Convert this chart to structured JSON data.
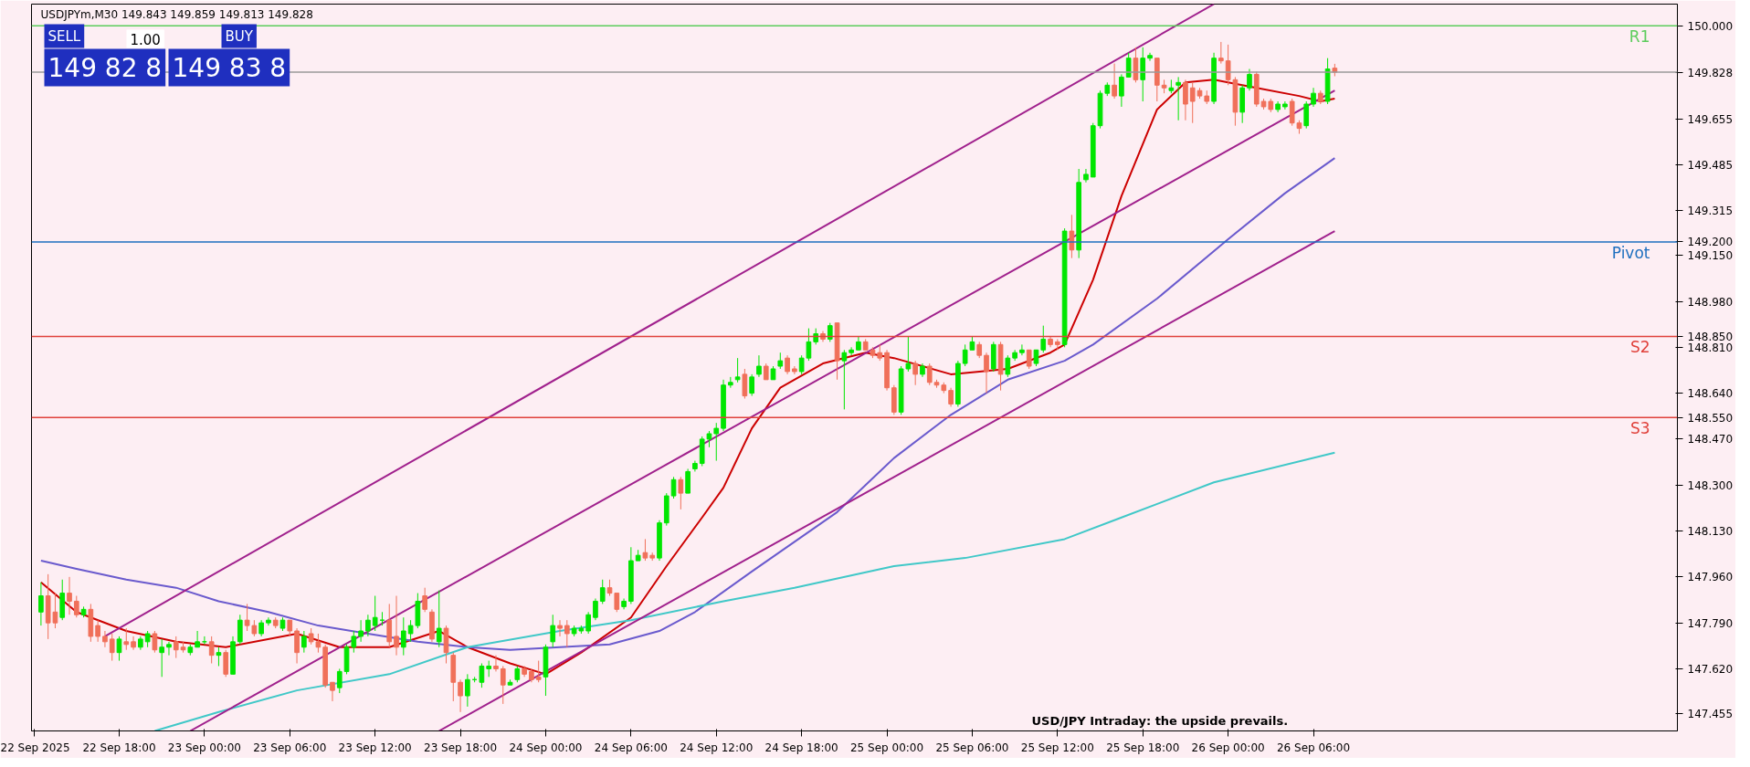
{
  "chart_data": {
    "type": "candlestick",
    "title": "USDJPYm,M30  149.843 149.859 149.813 149.828",
    "annotations": [
      "SELL",
      "1.00",
      "BUY",
      "149 82 8",
      "149 83 8",
      "USD/JPY Intraday:  the upside prevails."
    ],
    "colors": [
      "#00e600",
      "#f0705a",
      "#f0705a",
      "#00e600",
      "#f0705a",
      "#f0705a",
      "#00e600",
      "#f0705a",
      "#f0705a",
      "#f0705a",
      "#f0705a",
      "#00e600",
      "#f0705a",
      "#f0705a",
      "#00e600",
      "#00e600",
      "#f0705a",
      "#00e600",
      "#00e600",
      "#f0705a",
      "#f0705a",
      "#00e600",
      "#00e600",
      "#00e600",
      "#f0705a",
      "#00e600",
      "#f0705a",
      "#00e600",
      "#00e600",
      "#f0705a",
      "#f0705a",
      "#00e600",
      "#00e600",
      "#f0705a",
      "#00e600",
      "#f0705a",
      "#f0705a",
      "#00e600",
      "#f0705a",
      "#f0705a",
      "#f0705a",
      "#f0705a",
      "#00e600",
      "#00e600",
      "#00e600",
      "#00e600",
      "#00e600",
      "#00e600",
      "#00e600",
      "#f0705a",
      "#f0705a",
      "#00e600",
      "#00e600",
      "#00e600",
      "#f0705a",
      "#f0705a",
      "#00e600",
      "#f0705a",
      "#f0705a",
      "#f0705a",
      "#00e600",
      "#00e600",
      "#00e600",
      "#00e600",
      "#f0705a",
      "#f0705a",
      "#00e600",
      "#00e600",
      "#f0705a",
      "#f0705a",
      "#f0705a",
      "#00e600",
      "#00e600",
      "#f0705a",
      "#f0705a",
      "#00e600",
      "#00e600",
      "#00e600",
      "#00e600",
      "#00e600",
      "#f0705a",
      "#f0705a",
      "#00e600",
      "#00e600",
      "#00e600",
      "#f0705a",
      "#f0705a",
      "#00e600",
      "#00e600",
      "#00e600",
      "#f0705a",
      "#00e600",
      "#00e600",
      "#00e600",
      "#00e600",
      "#00e600",
      "#00e600",
      "#00e600",
      "#00e600",
      "#f0705a",
      "#00e600",
      "#00e600",
      "#f0705a",
      "#00e600",
      "#00e600",
      "#f0705a",
      "#f0705a",
      "#00e600",
      "#00e600",
      "#00e600",
      "#f0705a",
      "#00e600",
      "#f0705a",
      "#00e600",
      "#00e600",
      "#00e600",
      "#f0705a",
      "#f0705a",
      "#f0705a",
      "#f0705a",
      "#f0705a",
      "#00e600",
      "#00e600",
      "#f0705a",
      "#00e600",
      "#f0705a",
      "#f0705a",
      "#f0705a",
      "#f0705a",
      "#00e600",
      "#00e600",
      "#00e600",
      "#f0705a",
      "#f0705a",
      "#00e600",
      "#f0705a",
      "#00e600",
      "#00e600",
      "#00e600",
      "#f0705a",
      "#00e600",
      "#00e600",
      "#f0705a",
      "#f0705a",
      "#00e600",
      "#f0705a",
      "#00e600",
      "#00e600",
      "#00e600",
      "#00e600",
      "#00e600",
      "#f0705a",
      "#00e600",
      "#00e600",
      "#f0705a",
      "#00e600",
      "#00e600",
      "#f0705a",
      "#f0705a",
      "#00e600",
      "#00e600",
      "#f0705a",
      "#f0705a",
      "#f0705a",
      "#f0705a",
      "#00e600",
      "#f0705a",
      "#f0705a",
      "#f0705a",
      "#00e600",
      "#00e600",
      "#f0705a",
      "#f0705a",
      "#f0705a",
      "#00e600",
      "#00e600",
      "#f0705a",
      "#f0705a",
      "#00e600",
      "#00e600",
      "#f0705a",
      "#00e600",
      "#f0705a"
    ],
    "x": [
      "2025-09-22T12:30",
      "2025-09-22T13:00",
      "2025-09-22T13:30",
      "2025-09-22T14:00",
      "2025-09-22T14:30",
      "2025-09-22T15:00",
      "2025-09-22T15:30",
      "2025-09-22T16:00",
      "2025-09-22T16:30",
      "2025-09-22T17:00",
      "2025-09-22T17:30",
      "2025-09-22T18:00",
      "2025-09-22T18:30",
      "2025-09-22T19:00",
      "2025-09-22T19:30",
      "2025-09-22T20:00",
      "2025-09-22T20:30",
      "2025-09-22T21:00",
      "2025-09-22T21:30",
      "2025-09-22T22:00",
      "2025-09-22T22:30",
      "2025-09-22T23:00",
      "2025-09-22T23:30",
      "2025-09-23T00:00",
      "2025-09-23T00:30",
      "2025-09-23T01:00",
      "2025-09-23T01:30",
      "2025-09-23T02:00",
      "2025-09-23T02:30",
      "2025-09-23T03:00",
      "2025-09-23T03:30",
      "2025-09-23T04:00",
      "2025-09-23T04:30",
      "2025-09-23T05:00",
      "2025-09-23T05:30",
      "2025-09-23T06:00",
      "2025-09-23T06:30",
      "2025-09-23T07:00",
      "2025-09-23T07:30",
      "2025-09-23T08:00",
      "2025-09-23T08:30",
      "2025-09-23T09:00",
      "2025-09-23T09:30",
      "2025-09-23T10:00",
      "2025-09-23T10:30",
      "2025-09-23T11:00",
      "2025-09-23T11:30",
      "2025-09-23T12:00",
      "2025-09-23T12:30",
      "2025-09-23T13:00",
      "2025-09-23T13:30",
      "2025-09-23T14:00",
      "2025-09-23T14:30",
      "2025-09-23T15:00",
      "2025-09-23T15:30",
      "2025-09-23T16:00",
      "2025-09-23T16:30",
      "2025-09-23T17:00",
      "2025-09-23T17:30",
      "2025-09-23T18:00",
      "2025-09-23T18:30",
      "2025-09-23T19:00",
      "2025-09-23T19:30",
      "2025-09-23T20:00",
      "2025-09-23T20:30",
      "2025-09-23T21:00",
      "2025-09-23T21:30",
      "2025-09-23T22:00",
      "2025-09-23T22:30",
      "2025-09-23T23:00",
      "2025-09-23T23:30",
      "2025-09-24T00:00",
      "2025-09-24T00:30",
      "2025-09-24T01:00",
      "2025-09-24T01:30",
      "2025-09-24T02:00",
      "2025-09-24T02:30",
      "2025-09-24T03:00",
      "2025-09-24T03:30",
      "2025-09-24T04:00",
      "2025-09-24T04:30",
      "2025-09-24T05:00",
      "2025-09-24T05:30",
      "2025-09-24T06:00",
      "2025-09-24T06:30",
      "2025-09-24T07:00",
      "2025-09-24T07:30",
      "2025-09-24T08:00",
      "2025-09-24T08:30",
      "2025-09-24T09:00",
      "2025-09-24T09:30",
      "2025-09-24T10:00",
      "2025-09-24T10:30",
      "2025-09-24T11:00",
      "2025-09-24T11:30",
      "2025-09-24T12:00",
      "2025-09-24T12:30",
      "2025-09-24T13:00",
      "2025-09-24T13:30",
      "2025-09-24T14:00",
      "2025-09-24T14:30",
      "2025-09-24T15:00",
      "2025-09-24T15:30",
      "2025-09-24T16:00",
      "2025-09-24T16:30",
      "2025-09-24T17:00",
      "2025-09-24T17:30",
      "2025-09-24T18:00",
      "2025-09-24T18:30",
      "2025-09-24T19:00",
      "2025-09-24T19:30",
      "2025-09-24T20:00",
      "2025-09-24T20:30",
      "2025-09-24T21:00",
      "2025-09-24T21:30",
      "2025-09-24T22:00",
      "2025-09-24T22:30",
      "2025-09-24T23:00",
      "2025-09-24T23:30",
      "2025-09-25T00:00",
      "2025-09-25T00:30",
      "2025-09-25T01:00",
      "2025-09-25T01:30",
      "2025-09-25T02:00",
      "2025-09-25T02:30",
      "2025-09-25T03:00",
      "2025-09-25T03:30",
      "2025-09-25T04:00",
      "2025-09-25T04:30",
      "2025-09-25T05:00",
      "2025-09-25T05:30",
      "2025-09-25T06:00",
      "2025-09-25T06:30",
      "2025-09-25T07:00",
      "2025-09-25T07:30",
      "2025-09-25T08:00",
      "2025-09-25T08:30",
      "2025-09-25T09:00",
      "2025-09-25T09:30",
      "2025-09-25T10:00",
      "2025-09-25T10:30",
      "2025-09-25T11:00",
      "2025-09-25T11:30",
      "2025-09-25T12:00",
      "2025-09-25T12:30",
      "2025-09-25T13:00",
      "2025-09-25T13:30",
      "2025-09-25T14:00",
      "2025-09-25T14:30",
      "2025-09-25T15:00",
      "2025-09-25T15:30",
      "2025-09-25T16:00",
      "2025-09-25T16:30",
      "2025-09-25T17:00",
      "2025-09-25T17:30",
      "2025-09-25T18:00",
      "2025-09-25T18:30",
      "2025-09-25T19:00",
      "2025-09-25T19:30",
      "2025-09-25T20:00",
      "2025-09-25T20:30",
      "2025-09-25T21:00",
      "2025-09-25T21:30",
      "2025-09-25T22:00",
      "2025-09-25T22:30",
      "2025-09-25T23:00",
      "2025-09-25T23:30",
      "2025-09-26T00:00",
      "2025-09-26T00:30",
      "2025-09-26T01:00",
      "2025-09-26T01:30",
      "2025-09-26T02:00",
      "2025-09-26T02:30",
      "2025-09-26T03:00",
      "2025-09-26T03:30",
      "2025-09-26T04:00",
      "2025-09-26T04:30",
      "2025-09-26T05:00",
      "2025-09-26T05:30",
      "2025-09-26T06:00",
      "2025-09-26T06:30",
      "2025-09-26T07:00",
      "2025-09-26T07:30"
    ],
    "ohlc": [
      [
        147.83,
        147.94,
        147.78,
        147.89
      ],
      [
        147.89,
        147.97,
        147.73,
        147.79
      ],
      [
        147.83,
        147.9,
        147.77,
        147.79
      ],
      [
        147.81,
        147.95,
        147.8,
        147.9
      ],
      [
        147.9,
        147.96,
        147.82,
        147.87
      ],
      [
        147.87,
        147.89,
        147.81,
        147.82
      ],
      [
        147.82,
        147.85,
        147.81,
        147.84
      ],
      [
        147.84,
        147.86,
        147.72,
        147.74
      ],
      [
        147.78,
        147.8,
        147.72,
        147.74
      ],
      [
        147.74,
        147.76,
        147.7,
        147.72
      ],
      [
        147.73,
        147.75,
        147.65,
        147.68
      ],
      [
        147.68,
        147.74,
        147.65,
        147.73
      ],
      [
        147.72,
        147.77,
        147.69,
        147.71
      ],
      [
        147.72,
        147.74,
        147.69,
        147.7
      ],
      [
        147.7,
        147.74,
        147.69,
        147.73
      ],
      [
        147.72,
        147.76,
        147.7,
        147.75
      ],
      [
        147.75,
        147.76,
        147.68,
        147.69
      ],
      [
        147.68,
        147.73,
        147.59,
        147.7
      ],
      [
        147.7,
        147.72,
        147.67,
        147.71
      ],
      [
        147.72,
        147.74,
        147.66,
        147.69
      ],
      [
        147.7,
        147.72,
        147.68,
        147.69
      ],
      [
        147.68,
        147.71,
        147.67,
        147.7
      ],
      [
        147.7,
        147.76,
        147.7,
        147.72
      ],
      [
        147.72,
        147.74,
        147.71,
        147.72
      ],
      [
        147.72,
        147.74,
        147.64,
        147.67
      ],
      [
        147.67,
        147.7,
        147.63,
        147.68
      ],
      [
        147.68,
        147.69,
        147.59,
        147.6
      ],
      [
        147.6,
        147.74,
        147.6,
        147.72
      ],
      [
        147.72,
        147.82,
        147.71,
        147.8
      ],
      [
        147.8,
        147.86,
        147.76,
        147.78
      ],
      [
        147.78,
        147.8,
        147.74,
        147.75
      ],
      [
        147.75,
        147.8,
        147.74,
        147.79
      ],
      [
        147.79,
        147.81,
        147.78,
        147.8
      ],
      [
        147.8,
        147.81,
        147.77,
        147.78
      ],
      [
        147.77,
        147.81,
        147.76,
        147.8
      ],
      [
        147.8,
        147.8,
        147.74,
        147.76
      ],
      [
        147.76,
        147.77,
        147.64,
        147.68
      ],
      [
        147.7,
        147.76,
        147.68,
        147.74
      ],
      [
        147.75,
        147.77,
        147.71,
        147.72
      ],
      [
        147.72,
        147.75,
        147.68,
        147.7
      ],
      [
        147.7,
        147.71,
        147.55,
        147.56
      ],
      [
        147.57,
        147.57,
        147.5,
        147.54
      ],
      [
        147.55,
        147.62,
        147.53,
        147.61
      ],
      [
        147.61,
        147.71,
        147.6,
        147.7
      ],
      [
        147.7,
        147.76,
        147.68,
        147.74
      ],
      [
        147.74,
        147.8,
        147.72,
        147.76
      ],
      [
        147.76,
        147.82,
        147.74,
        147.8
      ],
      [
        147.78,
        147.89,
        147.76,
        147.81
      ],
      [
        147.8,
        147.83,
        147.78,
        147.8
      ],
      [
        147.8,
        147.86,
        147.7,
        147.72
      ],
      [
        147.74,
        147.89,
        147.67,
        147.7
      ],
      [
        147.7,
        147.81,
        147.67,
        147.76
      ],
      [
        147.75,
        147.8,
        147.72,
        147.78
      ],
      [
        147.78,
        147.9,
        147.77,
        147.87
      ],
      [
        147.89,
        147.92,
        147.83,
        147.84
      ],
      [
        147.83,
        147.84,
        147.72,
        147.73
      ],
      [
        147.72,
        147.91,
        147.7,
        147.77
      ],
      [
        147.77,
        147.78,
        147.64,
        147.68
      ],
      [
        147.67,
        147.68,
        147.5,
        147.57
      ],
      [
        147.57,
        147.58,
        147.46,
        147.52
      ],
      [
        147.52,
        147.6,
        147.48,
        147.58
      ],
      [
        147.58,
        147.59,
        147.57,
        147.58
      ],
      [
        147.57,
        147.64,
        147.55,
        147.63
      ],
      [
        147.62,
        147.65,
        147.59,
        147.63
      ],
      [
        147.63,
        147.67,
        147.61,
        147.62
      ],
      [
        147.62,
        147.63,
        147.49,
        147.56
      ],
      [
        147.56,
        147.58,
        147.56,
        147.57
      ],
      [
        147.58,
        147.63,
        147.57,
        147.62
      ],
      [
        147.62,
        147.63,
        147.59,
        147.6
      ],
      [
        147.61,
        147.62,
        147.57,
        147.58
      ],
      [
        147.59,
        147.65,
        147.57,
        147.58
      ],
      [
        147.59,
        147.71,
        147.52,
        147.7
      ],
      [
        147.72,
        147.82,
        147.7,
        147.78
      ],
      [
        147.78,
        147.8,
        147.74,
        147.77
      ],
      [
        147.78,
        147.8,
        147.7,
        147.75
      ],
      [
        147.75,
        147.78,
        147.74,
        147.77
      ],
      [
        147.76,
        147.78,
        147.75,
        147.77
      ],
      [
        147.76,
        147.83,
        147.75,
        147.82
      ],
      [
        147.81,
        147.88,
        147.8,
        147.87
      ],
      [
        147.87,
        147.95,
        147.86,
        147.92
      ],
      [
        147.92,
        147.95,
        147.89,
        147.9
      ],
      [
        147.9,
        147.9,
        147.83,
        147.84
      ],
      [
        147.85,
        147.88,
        147.84,
        147.87
      ],
      [
        147.87,
        148.07,
        147.86,
        148.02
      ],
      [
        148.02,
        148.06,
        148.02,
        148.04
      ],
      [
        148.05,
        148.1,
        148.02,
        148.03
      ],
      [
        148.04,
        148.05,
        148.02,
        148.03
      ],
      [
        148.03,
        148.17,
        148.02,
        148.16
      ],
      [
        148.16,
        148.27,
        148.15,
        148.26
      ],
      [
        148.26,
        148.33,
        148.25,
        148.32
      ],
      [
        148.32,
        148.33,
        148.21,
        148.27
      ],
      [
        148.27,
        148.36,
        148.27,
        148.35
      ],
      [
        148.36,
        148.39,
        148.35,
        148.38
      ],
      [
        148.38,
        148.48,
        148.37,
        148.47
      ],
      [
        148.47,
        148.5,
        148.44,
        148.49
      ],
      [
        148.49,
        148.53,
        148.39,
        148.51
      ],
      [
        148.51,
        148.69,
        148.5,
        148.67
      ],
      [
        148.67,
        148.7,
        148.66,
        148.68
      ],
      [
        148.69,
        148.77,
        148.68,
        148.7
      ],
      [
        148.71,
        148.73,
        148.62,
        148.63
      ],
      [
        148.64,
        148.71,
        148.63,
        148.7
      ],
      [
        148.71,
        148.78,
        148.7,
        148.74
      ],
      [
        148.74,
        148.75,
        148.69,
        148.69
      ],
      [
        148.69,
        148.74,
        148.69,
        148.73
      ],
      [
        148.74,
        148.79,
        148.73,
        148.76
      ],
      [
        148.77,
        148.78,
        148.71,
        148.72
      ],
      [
        148.73,
        148.74,
        148.71,
        148.72
      ],
      [
        148.72,
        148.78,
        148.71,
        148.77
      ],
      [
        148.77,
        148.88,
        148.76,
        148.83
      ],
      [
        148.83,
        148.88,
        148.82,
        148.86
      ],
      [
        148.86,
        148.87,
        148.83,
        148.84
      ],
      [
        148.84,
        148.9,
        148.83,
        148.89
      ],
      [
        148.9,
        148.9,
        148.69,
        148.76
      ],
      [
        148.76,
        148.8,
        148.58,
        148.79
      ],
      [
        148.79,
        148.81,
        148.78,
        148.8
      ],
      [
        148.8,
        148.85,
        148.8,
        148.83
      ],
      [
        148.83,
        148.84,
        148.8,
        148.8
      ],
      [
        148.8,
        148.81,
        148.77,
        148.78
      ],
      [
        148.79,
        148.82,
        148.76,
        148.77
      ],
      [
        148.79,
        148.8,
        148.65,
        148.66
      ],
      [
        148.66,
        148.67,
        148.56,
        148.57
      ],
      [
        148.57,
        148.74,
        148.56,
        148.73
      ],
      [
        148.73,
        148.85,
        148.72,
        148.75
      ],
      [
        148.75,
        148.76,
        148.67,
        148.71
      ],
      [
        148.71,
        148.75,
        148.7,
        148.74
      ],
      [
        148.74,
        148.75,
        148.67,
        148.68
      ],
      [
        148.68,
        148.69,
        148.66,
        148.67
      ],
      [
        148.67,
        148.68,
        148.64,
        148.65
      ],
      [
        148.65,
        148.66,
        148.59,
        148.6
      ],
      [
        148.6,
        148.76,
        148.59,
        148.75
      ],
      [
        148.75,
        148.82,
        148.74,
        148.8
      ],
      [
        148.8,
        148.85,
        148.8,
        148.83
      ],
      [
        148.82,
        148.83,
        148.77,
        148.78
      ],
      [
        148.78,
        148.79,
        148.64,
        148.72
      ],
      [
        148.73,
        148.83,
        148.72,
        148.82
      ],
      [
        148.82,
        148.83,
        148.65,
        148.71
      ],
      [
        148.71,
        148.78,
        148.7,
        148.77
      ],
      [
        148.77,
        148.8,
        148.76,
        148.79
      ],
      [
        148.79,
        148.82,
        148.78,
        148.8
      ],
      [
        148.8,
        148.8,
        148.73,
        148.74
      ],
      [
        148.75,
        148.8,
        148.74,
        148.8
      ],
      [
        148.8,
        148.89,
        148.79,
        148.84
      ],
      [
        148.84,
        148.85,
        148.81,
        148.82
      ],
      [
        148.83,
        148.84,
        148.8,
        148.82
      ],
      [
        148.82,
        149.25,
        148.81,
        149.24
      ],
      [
        149.24,
        149.3,
        149.14,
        149.17
      ],
      [
        149.17,
        149.47,
        149.14,
        149.42
      ],
      [
        149.43,
        149.47,
        149.42,
        149.45
      ],
      [
        149.44,
        149.64,
        149.44,
        149.63
      ],
      [
        149.63,
        149.76,
        149.62,
        149.75
      ],
      [
        149.75,
        149.79,
        149.74,
        149.78
      ],
      [
        149.78,
        149.86,
        149.73,
        149.74
      ],
      [
        149.74,
        149.82,
        149.7,
        149.81
      ],
      [
        149.81,
        149.9,
        149.81,
        149.88
      ],
      [
        149.88,
        149.92,
        149.79,
        149.8
      ],
      [
        149.8,
        149.92,
        149.72,
        149.88
      ],
      [
        149.88,
        149.9,
        149.87,
        149.89
      ],
      [
        149.88,
        149.88,
        149.72,
        149.78
      ],
      [
        149.78,
        149.8,
        149.75,
        149.77
      ],
      [
        149.76,
        149.8,
        149.75,
        149.77
      ],
      [
        149.78,
        149.81,
        149.65,
        149.79
      ],
      [
        149.79,
        149.8,
        149.65,
        149.71
      ],
      [
        149.77,
        149.79,
        149.64,
        149.72
      ],
      [
        149.76,
        149.77,
        149.73,
        149.74
      ],
      [
        149.74,
        149.76,
        149.71,
        149.72
      ],
      [
        149.72,
        149.9,
        149.71,
        149.88
      ],
      [
        149.88,
        149.94,
        149.86,
        149.87
      ],
      [
        149.87,
        149.93,
        149.78,
        149.8
      ],
      [
        149.8,
        149.81,
        149.63,
        149.68
      ],
      [
        149.68,
        149.78,
        149.64,
        149.77
      ],
      [
        149.77,
        149.84,
        149.76,
        149.82
      ],
      [
        149.82,
        149.83,
        149.7,
        149.71
      ],
      [
        149.72,
        149.73,
        149.69,
        149.7
      ],
      [
        149.72,
        149.73,
        149.68,
        149.69
      ],
      [
        149.69,
        149.72,
        149.68,
        149.71
      ],
      [
        149.7,
        149.72,
        149.69,
        149.71
      ],
      [
        149.72,
        149.73,
        149.63,
        149.64
      ],
      [
        149.64,
        149.65,
        149.6,
        149.62
      ],
      [
        149.63,
        149.72,
        149.62,
        149.71
      ],
      [
        149.71,
        149.77,
        149.7,
        149.75
      ],
      [
        149.75,
        149.76,
        149.71,
        149.72
      ],
      [
        149.72,
        149.88,
        149.71,
        149.84
      ],
      [
        149.843,
        149.859,
        149.813,
        149.828
      ]
    ],
    "series": [
      {
        "type": "line",
        "color": "#cc0000",
        "x": [
          "2025-09-22T12:30",
          "2025-09-22T15:00",
          "2025-09-22T18:30",
          "2025-09-22T22:00",
          "2025-09-23T01:30",
          "2025-09-23T06:30",
          "2025-09-23T09:30",
          "2025-09-23T13:00",
          "2025-09-23T16:30",
          "2025-09-23T18:30",
          "2025-09-23T21:30",
          "2025-09-24T00:00",
          "2025-09-24T02:30",
          "2025-09-24T06:00",
          "2025-09-24T08:30",
          "2025-09-24T11:00",
          "2025-09-24T12:30",
          "2025-09-24T14:30",
          "2025-09-24T16:30",
          "2025-09-24T19:30",
          "2025-09-24T22:30",
          "2025-09-25T00:30",
          "2025-09-25T04:30",
          "2025-09-25T08:30",
          "2025-09-25T11:30",
          "2025-09-25T12:30",
          "2025-09-25T14:30",
          "2025-09-25T16:30",
          "2025-09-25T19:00",
          "2025-09-25T21:00",
          "2025-09-25T23:00",
          "2025-09-26T02:00",
          "2025-09-26T05:00",
          "2025-09-26T06:30",
          "2025-09-26T07:30"
        ],
        "values": [
          147.94,
          147.83,
          147.76,
          147.72,
          147.7,
          147.75,
          147.7,
          147.7,
          147.76,
          147.7,
          147.64,
          147.6,
          147.68,
          147.81,
          148.0,
          148.18,
          148.29,
          148.51,
          148.66,
          148.75,
          148.79,
          148.77,
          148.71,
          148.73,
          148.79,
          148.82,
          149.06,
          149.37,
          149.69,
          149.79,
          149.8,
          149.77,
          149.74,
          149.72,
          149.73
        ]
      },
      {
        "type": "line",
        "color": "#6a5acd",
        "x": [
          "2025-09-22T12:30",
          "2025-09-22T15:00",
          "2025-09-22T18:30",
          "2025-09-22T22:00",
          "2025-09-23T01:00",
          "2025-09-23T04:30",
          "2025-09-23T08:00",
          "2025-09-23T11:30",
          "2025-09-23T15:00",
          "2025-09-23T18:30",
          "2025-09-23T21:30",
          "2025-09-24T01:00",
          "2025-09-24T04:30",
          "2025-09-24T08:00",
          "2025-09-24T10:30",
          "2025-09-24T14:30",
          "2025-09-24T17:30",
          "2025-09-24T20:30",
          "2025-09-25T00:30",
          "2025-09-25T04:30",
          "2025-09-25T08:30",
          "2025-09-25T12:30",
          "2025-09-25T14:30",
          "2025-09-25T19:00",
          "2025-09-26T00:00",
          "2025-09-26T04:00",
          "2025-09-26T07:30"
        ],
        "values": [
          148.02,
          147.99,
          147.95,
          147.92,
          147.87,
          147.83,
          147.78,
          147.75,
          147.72,
          147.7,
          147.69,
          147.7,
          147.71,
          147.76,
          147.83,
          147.98,
          148.09,
          148.2,
          148.4,
          148.56,
          148.69,
          148.76,
          148.82,
          148.99,
          149.21,
          149.38,
          149.51
        ]
      },
      {
        "type": "line",
        "color": "#40c8c8",
        "x": [
          "2025-09-22T20:30",
          "2025-09-23T01:00",
          "2025-09-23T06:30",
          "2025-09-23T13:00",
          "2025-09-23T18:30",
          "2025-09-24T01:00",
          "2025-09-24T06:00",
          "2025-09-24T12:30",
          "2025-09-24T17:30",
          "2025-09-25T00:30",
          "2025-09-25T05:30",
          "2025-09-25T12:30",
          "2025-09-25T16:30",
          "2025-09-25T23:00",
          "2025-09-26T07:30"
        ],
        "values": [
          147.39,
          147.46,
          147.54,
          147.6,
          147.7,
          147.76,
          147.8,
          147.87,
          147.92,
          148.0,
          148.03,
          148.1,
          148.18,
          148.31,
          148.42
        ]
      },
      {
        "type": "line",
        "color": "#a0208c",
        "x": [
          "2025-09-22T17:00",
          "2025-09-25T23:00"
        ],
        "values": [
          147.74,
          150.08
        ]
      },
      {
        "type": "line",
        "color": "#a0208c",
        "x": [
          "2025-09-22T23:00",
          "2025-09-26T07:30"
        ],
        "values": [
          147.39,
          149.76
        ]
      },
      {
        "type": "line",
        "color": "#a0208c",
        "x": [
          "2025-09-23T16:30",
          "2025-09-26T07:30"
        ],
        "values": [
          147.39,
          149.24
        ]
      }
    ],
    "ref_lines": [
      {
        "axis": "y",
        "value": 150.0,
        "label": "R1",
        "color": "#5ccc5c"
      },
      {
        "axis": "y",
        "value": 149.828,
        "label": null,
        "color": "#9a9a9a"
      },
      {
        "axis": "y",
        "value": 149.2,
        "label": "Pivot",
        "color": "#1e6fbf"
      },
      {
        "axis": "y",
        "value": 148.85,
        "label": "S2",
        "color": "#e0403a"
      },
      {
        "axis": "y",
        "value": 148.55,
        "label": "S3",
        "color": "#e0403a"
      }
    ],
    "xlim": [
      "2025-09-22T11:50",
      "2025-09-27T07:36"
    ],
    "xticks": [
      {
        "value": "2025-09-22T12:00",
        "label": "22 Sep 2025"
      },
      {
        "value": "2025-09-22T18:00",
        "label": "22 Sep 18:00"
      },
      {
        "value": "2025-09-23T00:00",
        "label": "23 Sep 00:00"
      },
      {
        "value": "2025-09-23T06:00",
        "label": "23 Sep 06:00"
      },
      {
        "value": "2025-09-23T12:00",
        "label": "23 Sep 12:00"
      },
      {
        "value": "2025-09-23T18:00",
        "label": "23 Sep 18:00"
      },
      {
        "value": "2025-09-24T00:00",
        "label": "24 Sep 00:00"
      },
      {
        "value": "2025-09-24T06:00",
        "label": "24 Sep 06:00"
      },
      {
        "value": "2025-09-24T12:00",
        "label": "24 Sep 12:00"
      },
      {
        "value": "2025-09-24T18:00",
        "label": "24 Sep 18:00"
      },
      {
        "value": "2025-09-25T00:00",
        "label": "25 Sep 00:00"
      },
      {
        "value": "2025-09-25T06:00",
        "label": "25 Sep 06:00"
      },
      {
        "value": "2025-09-25T12:00",
        "label": "25 Sep 12:00"
      },
      {
        "value": "2025-09-25T18:00",
        "label": "25 Sep 18:00"
      },
      {
        "value": "2025-09-26T00:00",
        "label": "26 Sep 00:00"
      },
      {
        "value": "2025-09-26T06:00",
        "label": "26 Sep 06:00"
      }
    ],
    "ylim": [
      147.39,
      150.08
    ],
    "yticks": [
      {
        "value": 150.0,
        "label": "150.000"
      },
      {
        "value": 149.828,
        "label": "149.828"
      },
      {
        "value": 149.2,
        "label": "149.200"
      },
      {
        "value": 148.85,
        "label": "148.850"
      },
      {
        "value": 148.55,
        "label": "148.550"
      },
      {
        "value": 149.655,
        "label": "149.655"
      },
      {
        "value": 149.485,
        "label": "149.485"
      },
      {
        "value": 149.315,
        "label": "149.315"
      },
      {
        "value": 149.15,
        "label": "149.150"
      },
      {
        "value": 148.98,
        "label": "148.980"
      },
      {
        "value": 148.81,
        "label": "148.810"
      },
      {
        "value": 148.64,
        "label": "148.640"
      },
      {
        "value": 148.47,
        "label": "148.470"
      },
      {
        "value": 148.3,
        "label": "148.300"
      },
      {
        "value": 148.13,
        "label": "148.130"
      },
      {
        "value": 147.96,
        "label": "147.960"
      },
      {
        "value": 147.79,
        "label": "147.790"
      },
      {
        "value": 147.62,
        "label": "147.620"
      },
      {
        "value": 147.455,
        "label": "147.455"
      }
    ]
  }
}
